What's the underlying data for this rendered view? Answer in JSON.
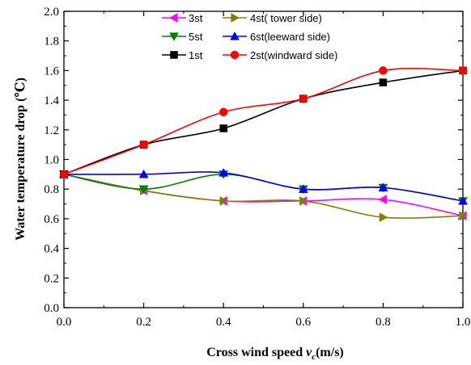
{
  "chart_data": {
    "type": "line",
    "xlabel": {
      "main": "Cross wind speed ",
      "var": "v",
      "sub": "c",
      "unit": "(m/s)"
    },
    "ylabel": "Water temperature drop (℃)",
    "xlim": [
      0.0,
      1.0
    ],
    "ylim": [
      0.0,
      2.0
    ],
    "x_ticks": [
      "0.0",
      "0.2",
      "0.4",
      "0.6",
      "0.8",
      "1.0"
    ],
    "y_ticks": [
      "0.0",
      "0.2",
      "0.4",
      "0.6",
      "0.8",
      "1.0",
      "1.2",
      "1.4",
      "1.6",
      "1.8",
      "2.0"
    ],
    "x_tick_values": [
      0.0,
      0.2,
      0.4,
      0.6,
      0.8,
      1.0
    ],
    "y_tick_values": [
      0.0,
      0.2,
      0.4,
      0.6,
      0.8,
      1.0,
      1.2,
      1.4,
      1.6,
      1.8,
      2.0
    ],
    "grid": false,
    "legend_position": "top",
    "x": [
      0.0,
      0.2,
      0.4,
      0.6,
      0.8,
      1.0
    ],
    "series": [
      {
        "name": "3st",
        "color": "#ff00ff",
        "marker": "triangle-left",
        "values": [
          0.9,
          0.79,
          0.72,
          0.72,
          0.73,
          0.62
        ]
      },
      {
        "name": "4st( tower side)",
        "color": "#808000",
        "marker": "triangle-right",
        "values": [
          0.9,
          0.79,
          0.72,
          0.72,
          0.61,
          0.62
        ]
      },
      {
        "name": "5st",
        "color": "#008000",
        "marker": "triangle-down",
        "values": [
          0.9,
          0.8,
          0.9,
          0.8,
          0.81,
          0.72
        ]
      },
      {
        "name": "6st(leeward side)",
        "color": "#0000ff",
        "marker": "triangle-up",
        "values": [
          0.9,
          0.9,
          0.91,
          0.8,
          0.81,
          0.72
        ]
      },
      {
        "name": "1st",
        "color": "#000000",
        "marker": "square",
        "values": [
          0.9,
          1.1,
          1.21,
          1.41,
          1.52,
          1.6
        ]
      },
      {
        "name": "2st(windward side)",
        "color": "#ff0000",
        "marker": "circle",
        "values": [
          0.9,
          1.1,
          1.32,
          1.41,
          1.6,
          1.6
        ]
      }
    ]
  }
}
